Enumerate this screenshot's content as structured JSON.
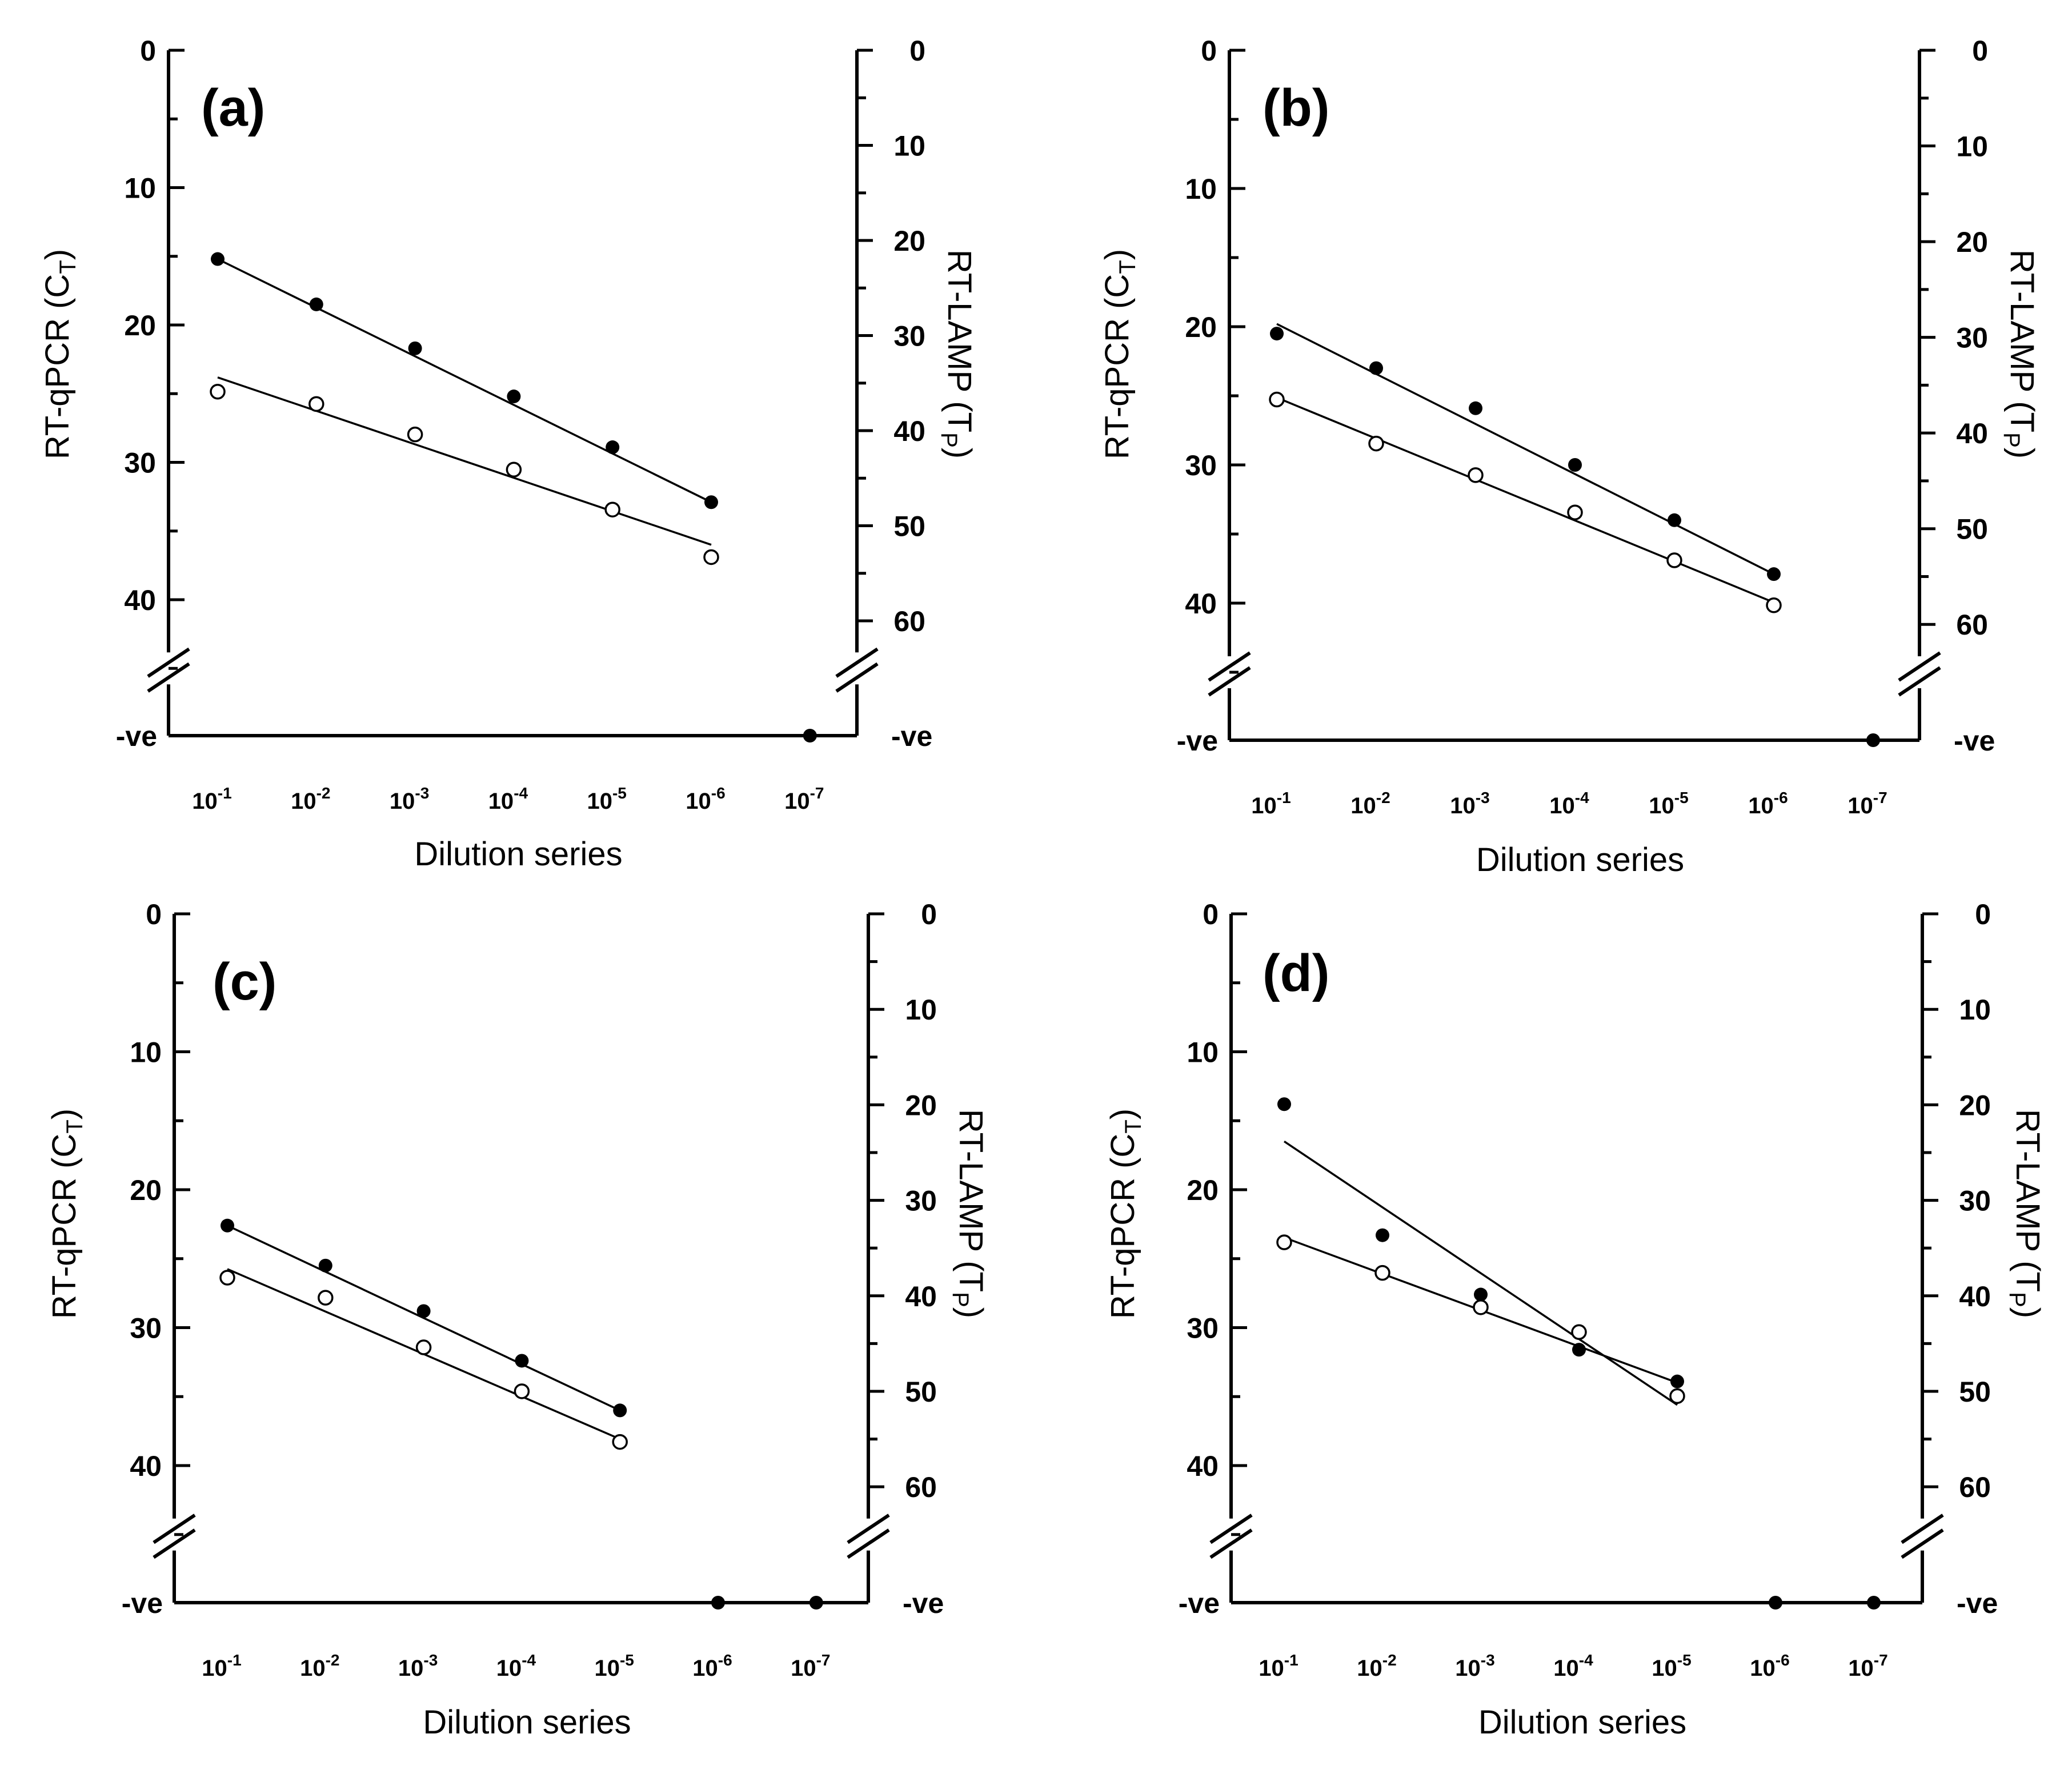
{
  "chart_data": [
    {
      "type": "scatter",
      "panel_label": "(a)",
      "xlabel": "Dilution series",
      "ylabel_left": "RT-qPCR (C",
      "ylabel_left_sub": "T",
      "ylabel_left_close": ")",
      "ylabel_right": "RT-LAMP (T",
      "ylabel_right_sub": "P",
      "ylabel_right_close": ")",
      "negative_label": "-ve",
      "categories": [
        "10^-1",
        "10^-2",
        "10^-3",
        "10^-4",
        "10^-5",
        "10^-6",
        "10^-7"
      ],
      "x_tick_base": "10",
      "x_tick_exponents": [
        "-1",
        "-2",
        "-3",
        "-4",
        "-5",
        "-6",
        "-7"
      ],
      "left_axis": {
        "ylim": [
          0,
          45
        ],
        "ticks": [
          "0",
          "10",
          "20",
          "30",
          "40"
        ],
        "inverted": true
      },
      "right_axis": {
        "ylim": [
          0,
          65
        ],
        "ticks": [
          "0",
          "10",
          "20",
          "30",
          "40",
          "50",
          "60"
        ],
        "inverted": true
      },
      "series": [
        {
          "name": "RT-qPCR (CT)",
          "marker": "filled",
          "axis": "left",
          "values": [
            15.2,
            18.5,
            21.7,
            25.2,
            28.9,
            32.9,
            null
          ],
          "negative": [
            false,
            false,
            false,
            false,
            false,
            false,
            true
          ],
          "fit": {
            "from": 1,
            "to": 6,
            "start": 15.2,
            "end": 32.9
          }
        },
        {
          "name": "RT-LAMP (TP)",
          "marker": "open",
          "axis": "right",
          "values": [
            35.9,
            37.2,
            40.4,
            44.1,
            48.3,
            53.3,
            null
          ],
          "negative": [
            false,
            false,
            false,
            false,
            false,
            false,
            false
          ],
          "fit": {
            "from": 1,
            "to": 6,
            "start": 34.4,
            "end": 52
          }
        }
      ]
    },
    {
      "type": "scatter",
      "panel_label": "(b)",
      "xlabel": "Dilution series",
      "ylabel_left": "RT-qPCR (C",
      "ylabel_left_sub": "T",
      "ylabel_left_close": ")",
      "ylabel_right": "RT-LAMP (T",
      "ylabel_right_sub": "P",
      "ylabel_right_close": ")",
      "negative_label": "-ve",
      "categories": [
        "10^-1",
        "10^-2",
        "10^-3",
        "10^-4",
        "10^-5",
        "10^-6",
        "10^-7"
      ],
      "x_tick_base": "10",
      "x_tick_exponents": [
        "-1",
        "-2",
        "-3",
        "-4",
        "-5",
        "-6",
        "-7"
      ],
      "left_axis": {
        "ylim": [
          0,
          45
        ],
        "ticks": [
          "0",
          "10",
          "20",
          "30",
          "40"
        ],
        "inverted": true
      },
      "right_axis": {
        "ylim": [
          0,
          65
        ],
        "ticks": [
          "0",
          "10",
          "20",
          "30",
          "40",
          "50",
          "60"
        ],
        "inverted": true
      },
      "series": [
        {
          "name": "RT-qPCR (CT)",
          "marker": "filled",
          "axis": "left",
          "values": [
            20.5,
            23.0,
            25.9,
            30.0,
            34.0,
            37.9,
            null
          ],
          "negative": [
            false,
            false,
            false,
            false,
            false,
            false,
            true
          ],
          "fit": {
            "from": 1,
            "to": 6,
            "start": 19.8,
            "end": 37.9
          }
        },
        {
          "name": "RT-LAMP (TP)",
          "marker": "open",
          "axis": "right",
          "values": [
            36.5,
            41.1,
            44.4,
            48.3,
            53.3,
            58.0,
            null
          ],
          "negative": [
            false,
            false,
            false,
            false,
            false,
            false,
            false
          ],
          "fit": {
            "from": 1,
            "to": 6,
            "start": 36.3,
            "end": 57.7
          }
        }
      ]
    },
    {
      "type": "scatter",
      "panel_label": "(c)",
      "xlabel": "Dilution series",
      "ylabel_left": "RT-qPCR (C",
      "ylabel_left_sub": "T",
      "ylabel_left_close": ")",
      "ylabel_right": "RT-LAMP (T",
      "ylabel_right_sub": "P",
      "ylabel_right_close": ")",
      "negative_label": "-ve",
      "categories": [
        "10^-1",
        "10^-2",
        "10^-3",
        "10^-4",
        "10^-5",
        "10^-6",
        "10^-7"
      ],
      "x_tick_base": "10",
      "x_tick_exponents": [
        "-1",
        "-2",
        "-3",
        "-4",
        "-5",
        "-6",
        "-7"
      ],
      "left_axis": {
        "ylim": [
          0,
          45
        ],
        "ticks": [
          "0",
          "10",
          "20",
          "30",
          "40"
        ],
        "inverted": true
      },
      "right_axis": {
        "ylim": [
          0,
          65
        ],
        "ticks": [
          "0",
          "10",
          "20",
          "30",
          "40",
          "50",
          "60"
        ],
        "inverted": true
      },
      "series": [
        {
          "name": "RT-qPCR (CT)",
          "marker": "filled",
          "axis": "left",
          "values": [
            22.6,
            25.5,
            28.8,
            32.4,
            36.0,
            null,
            null
          ],
          "negative": [
            false,
            false,
            false,
            false,
            false,
            true,
            true
          ],
          "fit": {
            "from": 1,
            "to": 5,
            "start": 22.6,
            "end": 36.0
          }
        },
        {
          "name": "RT-LAMP (TP)",
          "marker": "open",
          "axis": "right",
          "values": [
            38.1,
            40.2,
            45.4,
            50.0,
            55.3,
            null,
            null
          ],
          "negative": [
            false,
            false,
            false,
            false,
            false,
            false,
            false
          ],
          "fit": {
            "from": 1,
            "to": 5,
            "start": 37.2,
            "end": 55.0
          }
        }
      ]
    },
    {
      "type": "scatter",
      "panel_label": "(d)",
      "xlabel": "Dilution series",
      "ylabel_left": "RT-qPCR (C",
      "ylabel_left_sub": "T",
      "ylabel_left_close": ")",
      "ylabel_right": "RT-LAMP (T",
      "ylabel_right_sub": "P",
      "ylabel_right_close": ")",
      "negative_label": "-ve",
      "categories": [
        "10^-1",
        "10^-2",
        "10^-3",
        "10^-4",
        "10^-5",
        "10^-6",
        "10^-7"
      ],
      "x_tick_base": "10",
      "x_tick_exponents": [
        "-1",
        "-2",
        "-3",
        "-4",
        "-5",
        "-6",
        "-7"
      ],
      "left_axis": {
        "ylim": [
          0,
          45
        ],
        "ticks": [
          "0",
          "10",
          "20",
          "30",
          "40"
        ],
        "inverted": true
      },
      "right_axis": {
        "ylim": [
          0,
          65
        ],
        "ticks": [
          "0",
          "10",
          "20",
          "30",
          "40",
          "50",
          "60"
        ],
        "inverted": true
      },
      "series": [
        {
          "name": "RT-qPCR (CT)",
          "marker": "filled",
          "axis": "left",
          "values": [
            13.8,
            23.3,
            27.6,
            31.6,
            33.9,
            null,
            null
          ],
          "negative": [
            false,
            false,
            false,
            false,
            false,
            true,
            true
          ],
          "fit": {
            "from": 1,
            "to": 5,
            "start": 16.5,
            "end": 35.6
          }
        },
        {
          "name": "RT-LAMP (TP)",
          "marker": "open",
          "axis": "right",
          "values": [
            34.4,
            37.6,
            41.2,
            43.8,
            50.5,
            null,
            null
          ],
          "negative": [
            false,
            false,
            false,
            false,
            false,
            false,
            false
          ],
          "fit": {
            "from": 1,
            "to": 5,
            "start": 33.9,
            "end": 49.1
          }
        }
      ]
    }
  ]
}
